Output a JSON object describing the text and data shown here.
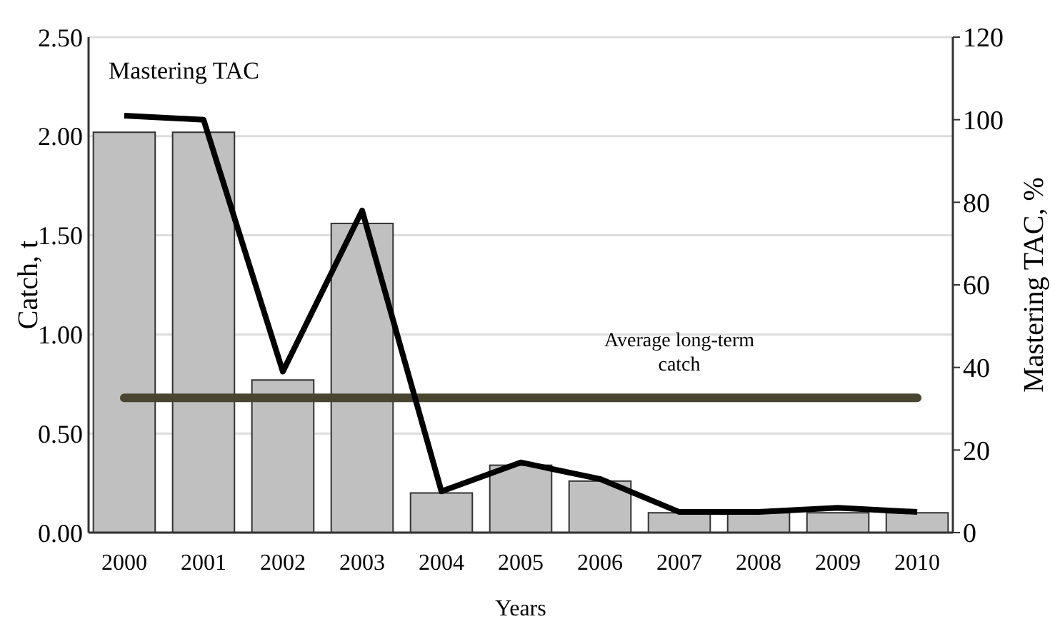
{
  "chart_data": {
    "type": "bar",
    "xlabel": "Years",
    "ylabel": "Catch, t",
    "y2label": "Mastering TAC, %",
    "categories": [
      "2000",
      "2001",
      "2002",
      "2003",
      "2004",
      "2005",
      "2006",
      "2007",
      "2008",
      "2009",
      "2010"
    ],
    "series": [
      {
        "color": "#c0c0c0",
        "values": [
          2.02,
          2.02,
          0.77,
          1.56,
          0.2,
          0.34,
          0.26,
          0.1,
          0.1,
          0.1,
          0.1
        ]
      },
      {
        "type": "line",
        "name": "Mastering TAC",
        "color": "#000000",
        "axis": "y2",
        "values": [
          101,
          100,
          39,
          78,
          10,
          17,
          13,
          5,
          5,
          6,
          5
        ]
      }
    ],
    "ylim": [
      0,
      2.5
    ],
    "yticks": [
      {
        "value": 0,
        "label": "0.00"
      },
      {
        "value": 0.5,
        "label": "0.50"
      },
      {
        "value": 1,
        "label": "1.00"
      },
      {
        "value": 1.5,
        "label": "1.50"
      },
      {
        "value": 2,
        "label": "2.00"
      },
      {
        "value": 2.5,
        "label": "2.50"
      }
    ],
    "y2lim": [
      0,
      120
    ],
    "y2ticks": [
      0,
      20,
      40,
      60,
      80,
      100,
      120
    ],
    "ref_lines": [
      {
        "axis": "y",
        "value": 0.68,
        "label": "Average long-term catch",
        "color": "#4a4530"
      }
    ],
    "grid": "y",
    "legend": false,
    "marker": "none",
    "line_style": "solid"
  }
}
